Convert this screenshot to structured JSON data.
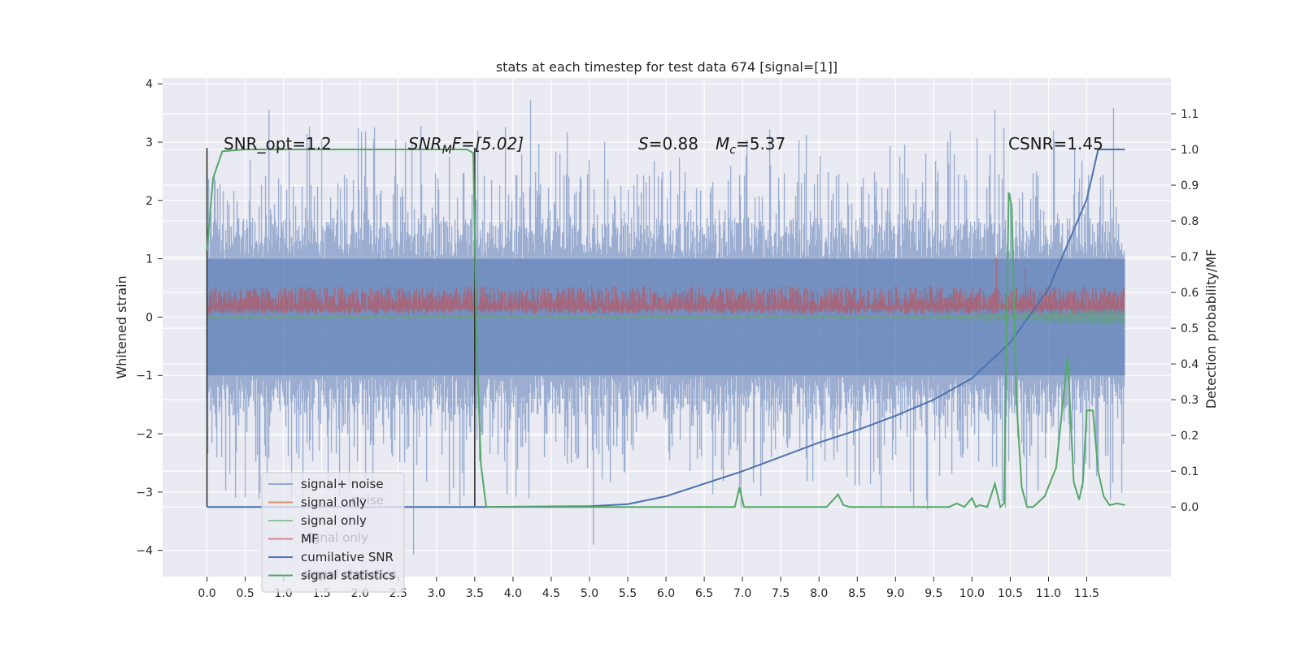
{
  "chart_data": {
    "type": "line",
    "title": "stats at each timestep for test data 674 [signal=[1]]",
    "ylabel_left": "Whitened strain",
    "ylabel_right": "Detection probability/MF",
    "x_ticks": [
      "0.0",
      "0.5",
      "1.0",
      "1.5",
      "2.0",
      "2.5",
      "3.0",
      "3.5",
      "4.0",
      "4.5",
      "5.0",
      "5.5",
      "6.0",
      "6.5",
      "7.0",
      "7.5",
      "8.0",
      "8.5",
      "9.0",
      "9.5",
      "10.0",
      "10.5",
      "11.0",
      "11.5"
    ],
    "y_left_ticks": [
      "−4",
      "−3",
      "−2",
      "−1",
      "0",
      "1",
      "2",
      "3",
      "4"
    ],
    "y_right_ticks": [
      "0.0",
      "0.1",
      "0.2",
      "0.3",
      "0.4",
      "0.5",
      "0.6",
      "0.7",
      "0.8",
      "0.9",
      "1.0",
      "1.1"
    ],
    "xlim": [
      -0.58,
      12.6
    ],
    "ylim_left": [
      -4.45,
      4.1
    ],
    "ylim_right": [
      -0.195,
      1.2
    ],
    "annotations": {
      "snr_opt": "SNR_opt=1.2",
      "snr_mf_a": "SNR",
      "snr_mf_sub": "M",
      "snr_mf_b": "F=[5.02]",
      "s_italic": "S",
      "s_val": "=0.88",
      "mc_italic": "M",
      "mc_sub": "c",
      "mc_val": "=5.37",
      "csnr": "CSNR=1.45"
    },
    "colors": {
      "signal_noise": "#4c72b0",
      "signal_only_orange": "#dd8452",
      "signal_only_green": "#55a868",
      "mf": "#c44e52",
      "cumulative_snr": "#4c72b0",
      "signal_statistics": "#55a868",
      "boundary": "#333333"
    },
    "series": [
      {
        "name": "signal+ noise",
        "axis": "left",
        "x_range": [
          0.0,
          12.0
        ],
        "typical_range": [
          -2.4,
          2.4
        ],
        "peak_max": 3.72,
        "peak_min": -4.08,
        "note_points": [
          [
            0.81,
            3.55
          ],
          [
            4.23,
            3.72
          ],
          [
            5.05,
            -3.9
          ],
          [
            10.3,
            3.55
          ],
          [
            11.85,
            3.58
          ],
          [
            2.7,
            -4.08
          ]
        ]
      },
      {
        "name": "signal only",
        "axis": "left",
        "x_range": [
          0.0,
          12.0
        ],
        "values_x": [
          0.0,
          12.0
        ],
        "values_y": [
          0.0,
          0.0
        ]
      },
      {
        "name": "signal only",
        "axis": "left",
        "x_range": [
          0.0,
          12.0
        ],
        "typical_range": [
          -0.05,
          0.05
        ],
        "tail_min": -0.12
      },
      {
        "name": "MF",
        "axis": "left",
        "x_range": [
          0.0,
          12.0
        ],
        "typical_range": [
          0.05,
          0.55
        ],
        "spikes": [
          [
            10.32,
            1.02
          ],
          [
            10.7,
            0.85
          ]
        ]
      },
      {
        "name": "cumilative SNR",
        "axis": "right",
        "x": [
          0.0,
          3.5,
          5.0,
          5.5,
          6.0,
          6.5,
          7.0,
          7.5,
          8.0,
          8.5,
          9.0,
          9.5,
          10.0,
          10.5,
          11.0,
          11.5,
          11.65,
          12.0
        ],
        "y": [
          0.0,
          0.0,
          0.002,
          0.008,
          0.03,
          0.065,
          0.1,
          0.14,
          0.18,
          0.215,
          0.255,
          0.3,
          0.36,
          0.46,
          0.61,
          0.86,
          1.0,
          1.0
        ]
      },
      {
        "name": "signal statistics",
        "axis": "right",
        "x": [
          0.0,
          0.08,
          0.2,
          0.5,
          3.4,
          3.48,
          3.52,
          3.58,
          3.65,
          6.9,
          6.96,
          7.02,
          8.1,
          8.25,
          8.32,
          8.4,
          9.7,
          9.8,
          9.9,
          10.0,
          10.05,
          10.1,
          10.2,
          10.3,
          10.37,
          10.42,
          10.48,
          10.52,
          10.58,
          10.65,
          10.72,
          10.8,
          10.95,
          11.1,
          11.25,
          11.33,
          11.4,
          11.45,
          11.5,
          11.58,
          11.65,
          11.72,
          11.8,
          11.9,
          12.0
        ],
        "y": [
          0.72,
          0.92,
          0.995,
          1.0,
          1.0,
          0.99,
          0.5,
          0.12,
          0.0,
          0.0,
          0.055,
          0.0,
          0.0,
          0.035,
          0.005,
          0.0,
          0.0,
          0.01,
          0.0,
          0.025,
          0.0,
          0.005,
          0.0,
          0.065,
          0.0,
          0.01,
          0.88,
          0.84,
          0.3,
          0.055,
          0.0,
          0.0,
          0.03,
          0.11,
          0.42,
          0.07,
          0.02,
          0.07,
          0.27,
          0.27,
          0.1,
          0.03,
          0.005,
          0.01,
          0.005
        ]
      }
    ],
    "boundary_lines_x": [
      0.0,
      3.5
    ],
    "legend": {
      "placement": "lower-left",
      "entries": [
        {
          "label": "signal+ noise",
          "color": "#4c72b0",
          "alpha": 0.55
        },
        {
          "label": "signal only",
          "color": "#dd8452",
          "alpha": 0.9
        },
        {
          "label": "signal only",
          "color": "#55a868",
          "alpha": 0.6
        },
        {
          "label": "MF",
          "color": "#c44e52",
          "alpha": 0.65
        },
        {
          "label": "cumilative SNR",
          "color": "#4c72b0",
          "alpha": 1.0
        },
        {
          "label": "signal statistics",
          "color": "#55a868",
          "alpha": 1.0
        }
      ],
      "ghost_entries": [
        "noise",
        "signal only",
        "signal statistics"
      ]
    },
    "grid": true
  }
}
